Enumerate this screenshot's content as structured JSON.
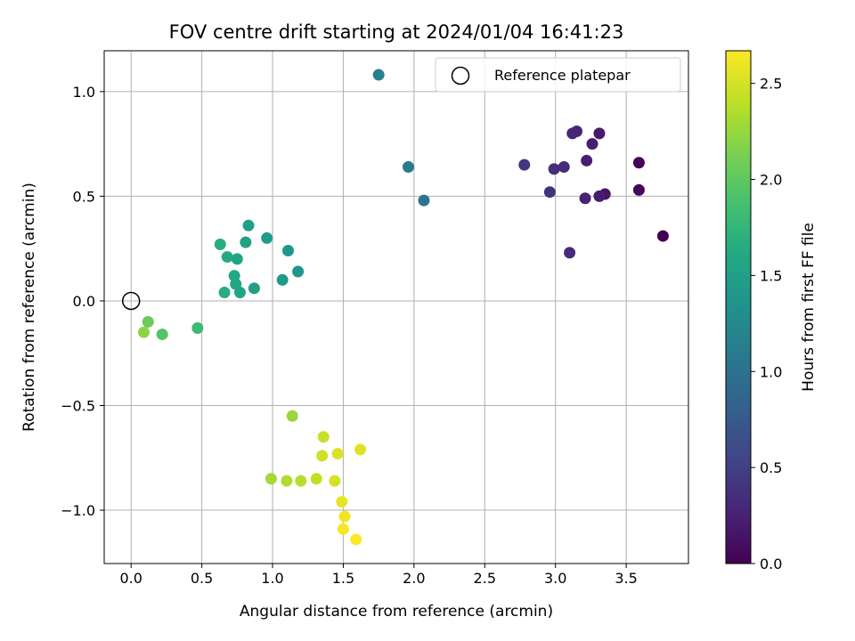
{
  "chart_data": {
    "type": "scatter",
    "title": "FOV centre drift starting at 2024/01/04 16:41:23",
    "xlabel": "Angular distance from reference (arcmin)",
    "ylabel": "Rotation from reference (arcmin)",
    "xlim": [
      -0.19,
      3.94
    ],
    "ylim": [
      -1.255,
      1.195
    ],
    "xticks": [
      0.0,
      0.5,
      1.0,
      1.5,
      2.0,
      2.5,
      3.0,
      3.5
    ],
    "xtick_labels": [
      "0.0",
      "0.5",
      "1.0",
      "1.5",
      "2.0",
      "2.5",
      "3.0",
      "3.5"
    ],
    "yticks": [
      -1.0,
      -0.5,
      0.0,
      0.5,
      1.0
    ],
    "ytick_labels": [
      "−1.0",
      "−0.5",
      "0.0",
      "0.5",
      "1.0"
    ],
    "grid": true,
    "legend": {
      "placement": "top-right",
      "entries": [
        "Reference platepar"
      ]
    },
    "reference_point": {
      "x": 0.0,
      "y": 0.0,
      "label": "Reference platepar"
    },
    "colorbar": {
      "label": "Hours from first FF file",
      "range": [
        0.0,
        2.67
      ],
      "ticks": [
        0.0,
        0.5,
        1.0,
        1.5,
        2.0,
        2.5
      ],
      "tick_labels": [
        "0.0",
        "0.5",
        "1.0",
        "1.5",
        "2.0",
        "2.5"
      ],
      "colormap": "viridis"
    },
    "points": [
      {
        "x": 3.76,
        "y": 0.31,
        "c": 0.0
      },
      {
        "x": 3.59,
        "y": 0.66,
        "c": 0.03
      },
      {
        "x": 3.59,
        "y": 0.53,
        "c": 0.05
      },
      {
        "x": 3.35,
        "y": 0.51,
        "c": 0.15
      },
      {
        "x": 3.31,
        "y": 0.8,
        "c": 0.18
      },
      {
        "x": 3.31,
        "y": 0.5,
        "c": 0.2
      },
      {
        "x": 3.26,
        "y": 0.75,
        "c": 0.22
      },
      {
        "x": 3.22,
        "y": 0.67,
        "c": 0.24
      },
      {
        "x": 3.21,
        "y": 0.49,
        "c": 0.26
      },
      {
        "x": 3.15,
        "y": 0.81,
        "c": 0.28
      },
      {
        "x": 3.12,
        "y": 0.8,
        "c": 0.3
      },
      {
        "x": 3.1,
        "y": 0.23,
        "c": 0.32
      },
      {
        "x": 3.06,
        "y": 0.64,
        "c": 0.34
      },
      {
        "x": 2.99,
        "y": 0.63,
        "c": 0.36
      },
      {
        "x": 2.96,
        "y": 0.52,
        "c": 0.38
      },
      {
        "x": 2.78,
        "y": 0.65,
        "c": 0.42
      },
      {
        "x": 2.07,
        "y": 0.48,
        "c": 1.05
      },
      {
        "x": 1.96,
        "y": 0.64,
        "c": 1.1
      },
      {
        "x": 1.75,
        "y": 1.08,
        "c": 1.15
      },
      {
        "x": 1.18,
        "y": 0.14,
        "c": 1.4
      },
      {
        "x": 1.11,
        "y": 0.24,
        "c": 1.42
      },
      {
        "x": 1.07,
        "y": 0.1,
        "c": 1.44
      },
      {
        "x": 0.96,
        "y": 0.3,
        "c": 1.46
      },
      {
        "x": 0.87,
        "y": 0.06,
        "c": 1.48
      },
      {
        "x": 0.83,
        "y": 0.36,
        "c": 1.5
      },
      {
        "x": 0.81,
        "y": 0.28,
        "c": 1.52
      },
      {
        "x": 0.77,
        "y": 0.04,
        "c": 1.54
      },
      {
        "x": 0.75,
        "y": 0.2,
        "c": 1.56
      },
      {
        "x": 0.74,
        "y": 0.08,
        "c": 1.58
      },
      {
        "x": 0.73,
        "y": 0.12,
        "c": 1.6
      },
      {
        "x": 0.68,
        "y": 0.21,
        "c": 1.62
      },
      {
        "x": 0.66,
        "y": 0.04,
        "c": 1.64
      },
      {
        "x": 0.63,
        "y": 0.27,
        "c": 1.66
      },
      {
        "x": 0.47,
        "y": -0.13,
        "c": 1.8
      },
      {
        "x": 0.22,
        "y": -0.16,
        "c": 1.95
      },
      {
        "x": 0.12,
        "y": -0.1,
        "c": 2.05
      },
      {
        "x": 0.09,
        "y": -0.15,
        "c": 2.2
      },
      {
        "x": 1.14,
        "y": -0.55,
        "c": 2.25
      },
      {
        "x": 0.99,
        "y": -0.85,
        "c": 2.3
      },
      {
        "x": 1.1,
        "y": -0.86,
        "c": 2.35
      },
      {
        "x": 1.2,
        "y": -0.86,
        "c": 2.38
      },
      {
        "x": 1.31,
        "y": -0.85,
        "c": 2.42
      },
      {
        "x": 1.36,
        "y": -0.65,
        "c": 2.45
      },
      {
        "x": 1.35,
        "y": -0.74,
        "c": 2.47
      },
      {
        "x": 1.44,
        "y": -0.86,
        "c": 2.5
      },
      {
        "x": 1.46,
        "y": -0.73,
        "c": 2.52
      },
      {
        "x": 1.62,
        "y": -0.71,
        "c": 2.55
      },
      {
        "x": 1.49,
        "y": -0.96,
        "c": 2.58
      },
      {
        "x": 1.51,
        "y": -1.03,
        "c": 2.61
      },
      {
        "x": 1.5,
        "y": -1.09,
        "c": 2.64
      },
      {
        "x": 1.59,
        "y": -1.14,
        "c": 2.67
      }
    ]
  }
}
